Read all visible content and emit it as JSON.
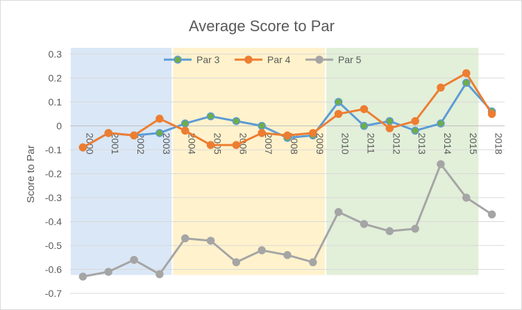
{
  "chart_data": {
    "type": "line",
    "title": "Average Score to Par",
    "xlabel": "",
    "ylabel": "Score to Par",
    "categories": [
      "2000",
      "2001",
      "2002",
      "2003",
      "2004",
      "2005",
      "2006",
      "2007",
      "2008",
      "2009",
      "2010",
      "2011",
      "2012",
      "2013",
      "2014",
      "2015",
      "2018"
    ],
    "ylim": [
      -0.7,
      0.3
    ],
    "yticks": [
      0.3,
      0.2,
      0.1,
      0,
      -0.1,
      -0.2,
      -0.3,
      -0.4,
      -0.5,
      -0.6,
      -0.7
    ],
    "ytick_labels": [
      "0.3",
      "0.2",
      "0.1",
      "0",
      "-0.1",
      "-0.2",
      "-0.3",
      "-0.4",
      "-0.5",
      "-0.6",
      "-0.7"
    ],
    "grid": true,
    "legend_position": "top",
    "background_bands": [
      {
        "from": "2000",
        "to": "2003",
        "color": "#dae7f6"
      },
      {
        "from": "2004",
        "to": "2009",
        "color": "#fff2cc"
      },
      {
        "from": "2010",
        "to": "2015",
        "color": "#e2efd9"
      }
    ],
    "series": [
      {
        "name": "Par 3",
        "line_color": "#5b9bd5",
        "marker_color": "#70ad47",
        "values": [
          -0.09,
          -0.03,
          -0.04,
          -0.03,
          0.01,
          0.04,
          0.02,
          0.0,
          -0.05,
          -0.04,
          0.1,
          0.0,
          0.02,
          -0.02,
          0.01,
          0.18,
          0.06
        ]
      },
      {
        "name": "Par 4",
        "line_color": "#ed7d31",
        "marker_color": "#ed7d31",
        "values": [
          -0.09,
          -0.03,
          -0.04,
          0.03,
          -0.02,
          -0.08,
          -0.08,
          -0.03,
          -0.04,
          -0.03,
          0.05,
          0.07,
          -0.01,
          0.02,
          0.16,
          0.22,
          0.05
        ]
      },
      {
        "name": "Par 5",
        "line_color": "#a5a5a5",
        "marker_color": "#a5a5a5",
        "values": [
          -0.63,
          -0.61,
          -0.56,
          -0.62,
          -0.47,
          -0.48,
          -0.57,
          -0.52,
          -0.54,
          -0.57,
          -0.36,
          -0.41,
          -0.44,
          -0.43,
          -0.16,
          -0.3,
          -0.37
        ]
      }
    ]
  }
}
